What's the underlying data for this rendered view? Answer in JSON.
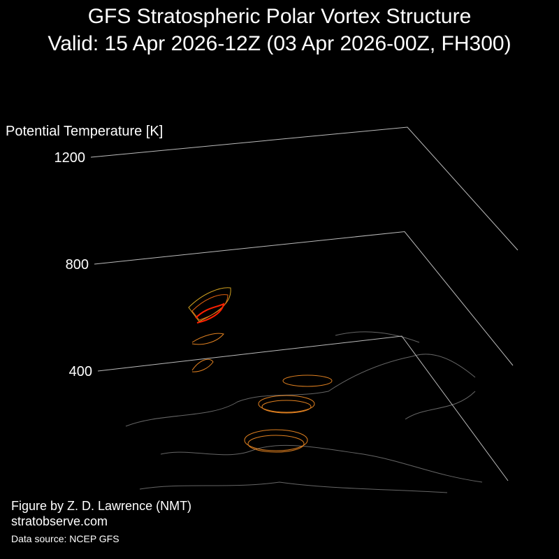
{
  "chart_data": {
    "type": "3d-contour",
    "title": "GFS Stratospheric Polar Vortex Structure",
    "subtitle": "Valid: 15 Apr 2026-12Z  (03 Apr 2026-00Z, FH300)",
    "zlabel": "Potential Temperature [K]",
    "zlim": [
      400,
      1200
    ],
    "zticks": [
      400,
      800,
      1200
    ],
    "plane_color": "#bbbbbb",
    "annotations": [
      "Figure by Z. D. Lawrence (NMT)",
      "stratobserve.com",
      "Data source: NCEP GFS"
    ]
  }
}
